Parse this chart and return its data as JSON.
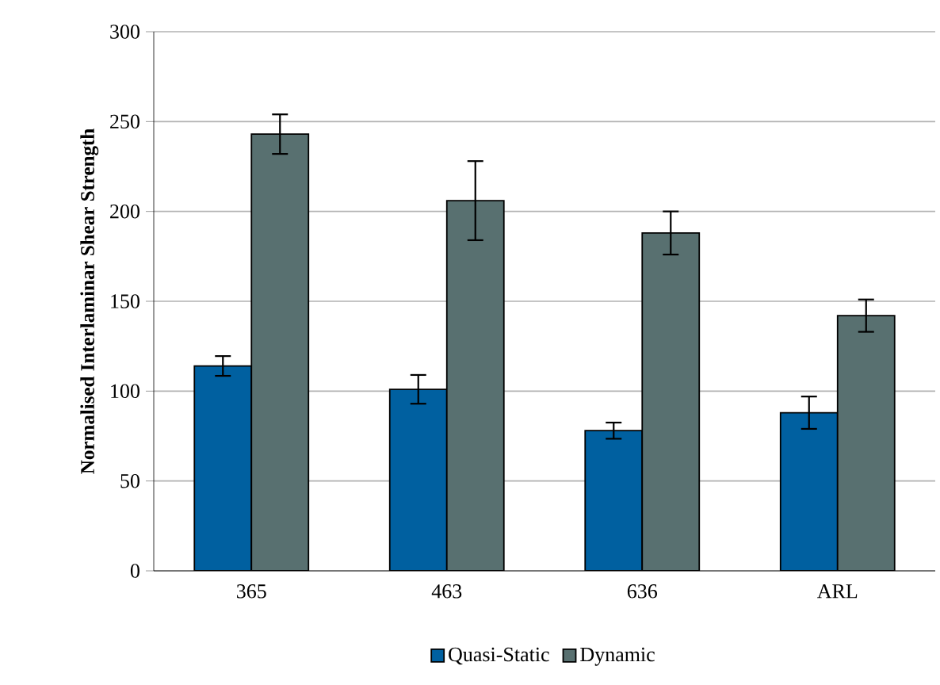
{
  "chart_data": {
    "type": "bar",
    "ylabel": "Normalised Interlaminar Shear Strength",
    "categories": [
      "365",
      "463",
      "636",
      "ARL"
    ],
    "series": [
      {
        "name": "Quasi-Static",
        "color": "#0060a0",
        "values": [
          114,
          101,
          78,
          88
        ],
        "errors": [
          5.5,
          8,
          4.5,
          9
        ]
      },
      {
        "name": "Dynamic",
        "color": "#587070",
        "values": [
          243,
          206,
          188,
          142
        ],
        "errors": [
          11,
          22,
          12,
          9
        ]
      }
    ],
    "ylim": [
      0,
      300
    ],
    "yticks": [
      0,
      50,
      100,
      150,
      200,
      250,
      300
    ],
    "grid": "y",
    "legend": "bottom"
  }
}
